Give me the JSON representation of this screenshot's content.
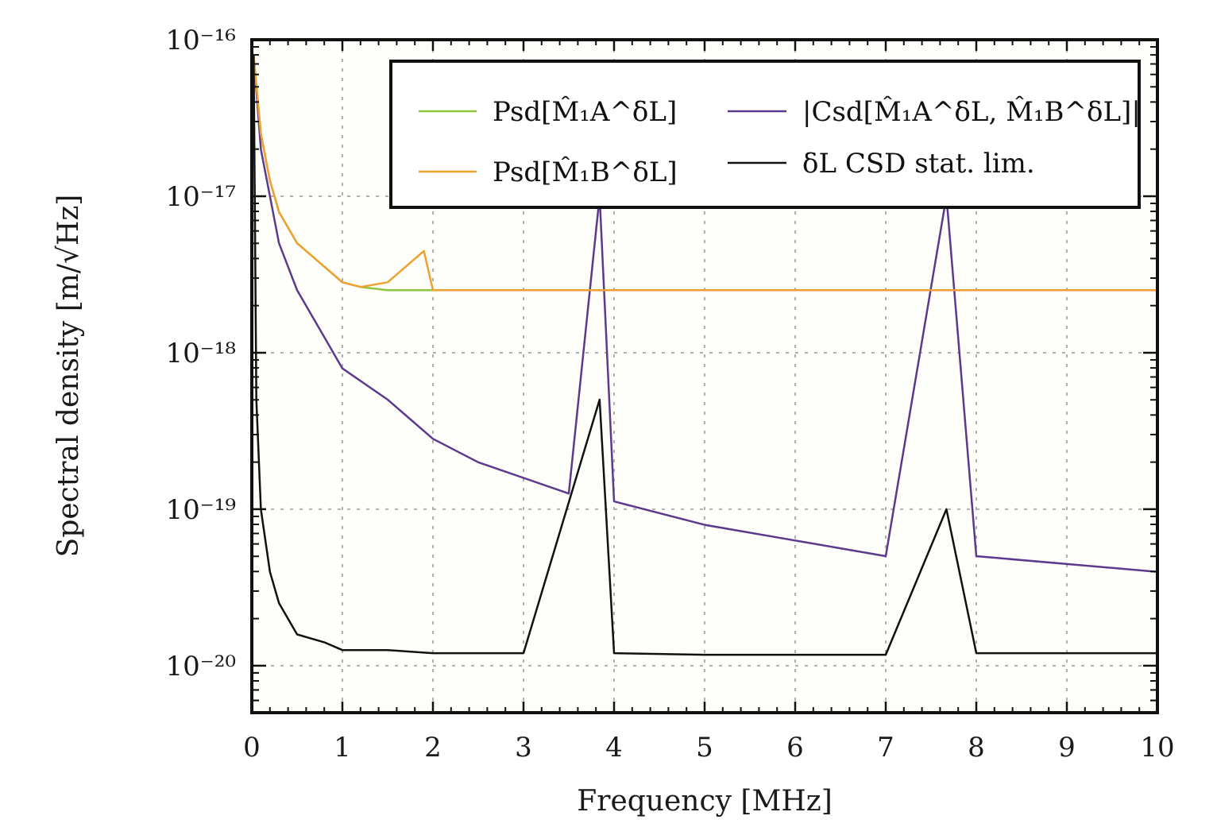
{
  "chart_data": {
    "type": "line",
    "xlabel": "Frequency [MHz]",
    "ylabel": "Spectral density [m/√Hz]",
    "xlim": [
      0,
      10
    ],
    "ylim_log10": [
      -20.3,
      -16
    ],
    "y_scale": "log",
    "x_ticks": [
      0,
      1,
      2,
      3,
      4,
      5,
      6,
      7,
      8,
      9,
      10
    ],
    "y_ticks": [
      "10⁻¹⁶",
      "10⁻¹⁷",
      "10⁻¹⁸",
      "10⁻¹⁹",
      "10⁻²⁰"
    ],
    "grid": true,
    "legend_placement": "top-right",
    "colors": {
      "psd_a": "#8dc63f",
      "psd_b": "#f0a030",
      "csd": "#5b3a8c",
      "stat_lim": "#111111"
    },
    "series": [
      {
        "name": "Psd[M̂₁A^δL]",
        "color": "#8dc63f",
        "x": [
          0.02,
          0.1,
          0.2,
          0.3,
          0.5,
          0.8,
          1.0,
          1.2,
          1.5,
          2.0,
          3.0,
          4.0,
          5.0,
          6.0,
          7.0,
          8.0,
          9.0,
          10.0
        ],
        "y_log10": [
          -16.1,
          -16.6,
          -16.9,
          -17.1,
          -17.3,
          -17.45,
          -17.55,
          -17.58,
          -17.6,
          -17.6,
          -17.6,
          -17.6,
          -17.6,
          -17.6,
          -17.6,
          -17.6,
          -17.6,
          -17.6
        ]
      },
      {
        "name": "Psd[M̂₁B^δL]",
        "color": "#f0a030",
        "x": [
          0.02,
          0.1,
          0.2,
          0.3,
          0.5,
          0.8,
          1.0,
          1.2,
          1.5,
          1.9,
          2.0,
          3.0,
          4.0,
          5.0,
          6.0,
          7.0,
          8.0,
          9.0,
          10.0
        ],
        "y_log10": [
          -16.1,
          -16.6,
          -16.9,
          -17.1,
          -17.3,
          -17.45,
          -17.55,
          -17.58,
          -17.55,
          -17.35,
          -17.6,
          -17.6,
          -17.6,
          -17.6,
          -17.6,
          -17.6,
          -17.6,
          -17.6,
          -17.6
        ]
      },
      {
        "name": "|Csd[M̂₁A^δL, M̂₁B^δL]|",
        "color": "#5b3a8c",
        "x": [
          0.02,
          0.1,
          0.2,
          0.3,
          0.5,
          0.8,
          1.0,
          1.5,
          2.0,
          2.5,
          3.0,
          3.5,
          3.84,
          4.0,
          5.0,
          6.0,
          7.0,
          7.67,
          8.0,
          9.0,
          10.0
        ],
        "y_log10": [
          -16.1,
          -16.7,
          -17.0,
          -17.3,
          -17.6,
          -17.9,
          -18.1,
          -18.3,
          -18.55,
          -18.7,
          -18.8,
          -18.9,
          -17.0,
          -18.95,
          -19.1,
          -19.2,
          -19.3,
          -17.0,
          -19.3,
          -19.35,
          -19.4
        ]
      },
      {
        "name": "δL CSD stat. lim.",
        "color": "#111111",
        "x": [
          0.02,
          0.05,
          0.1,
          0.2,
          0.3,
          0.5,
          0.8,
          1.0,
          1.5,
          2.0,
          3.0,
          3.84,
          4.0,
          5.0,
          6.0,
          7.0,
          7.67,
          8.0,
          9.0,
          10.0
        ],
        "y_log10": [
          -16.1,
          -18.3,
          -19.0,
          -19.4,
          -19.6,
          -19.8,
          -19.85,
          -19.9,
          -19.9,
          -19.92,
          -19.92,
          -18.3,
          -19.92,
          -19.93,
          -19.93,
          -19.93,
          -19.0,
          -19.92,
          -19.92,
          -19.92
        ]
      }
    ]
  }
}
